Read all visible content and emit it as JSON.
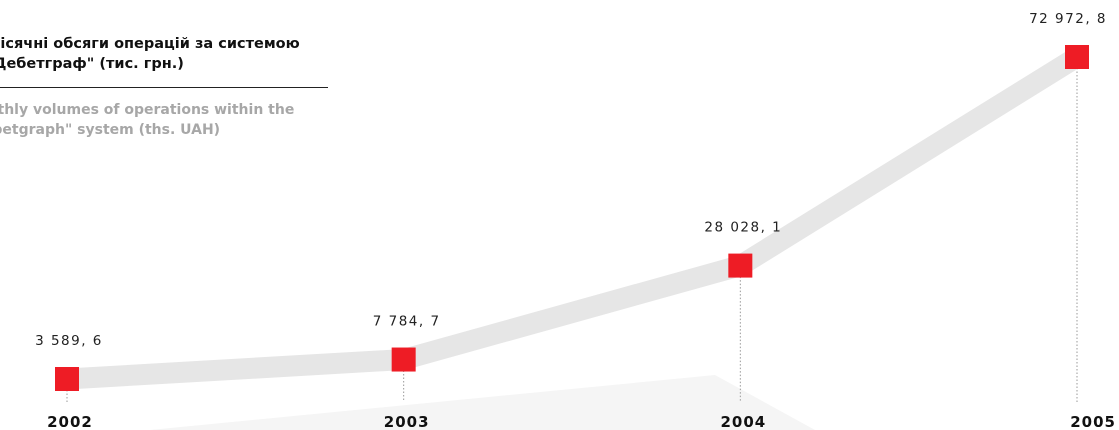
{
  "title": {
    "ua": "Місячні обсяги операцій за системою \"Дебетграф\" (тис. грн.)",
    "en": "Monthly volumes of operations within the \"Debetgraph\" system (ths. UAH)"
  },
  "chart_data": {
    "type": "line",
    "title": "Місячні обсяги операцій за системою \"Дебетграф\" (тис. грн.)",
    "subtitle": "Monthly volumes of operations within the \"Debetgraph\" system (ths. UAH)",
    "categories": [
      "2002",
      "2003",
      "2004",
      "2005"
    ],
    "series": [
      {
        "values": [
          3589.6,
          7784.7,
          28028.1,
          72972.8
        ],
        "labels": [
          "3 589, 6",
          "7 784, 7",
          "28 028, 1",
          "72 972, 8"
        ]
      }
    ],
    "xlabel": "",
    "ylabel": "",
    "grid": false,
    "legend": "none",
    "colors": {
      "marker": "#ee1c25",
      "line": "#e6e6e6",
      "drop_line": "#9a9a9a",
      "text": "#222222"
    }
  }
}
